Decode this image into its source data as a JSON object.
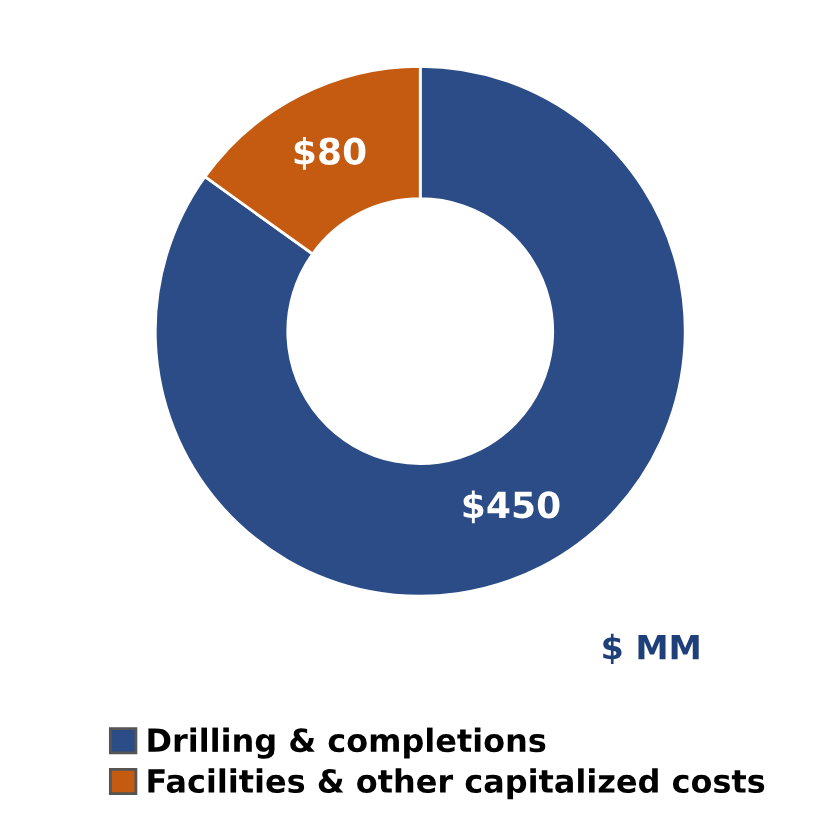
{
  "chart_data": {
    "type": "donut",
    "categories": [
      "Drilling & completions",
      "Facilities & other capitalized costs"
    ],
    "values": [
      450,
      80
    ],
    "colors": [
      "#2b4c87",
      "#c55a11"
    ],
    "value_labels": [
      "$450",
      "$80"
    ],
    "annotations": [
      "$ MM"
    ],
    "legend": "bottom"
  }
}
